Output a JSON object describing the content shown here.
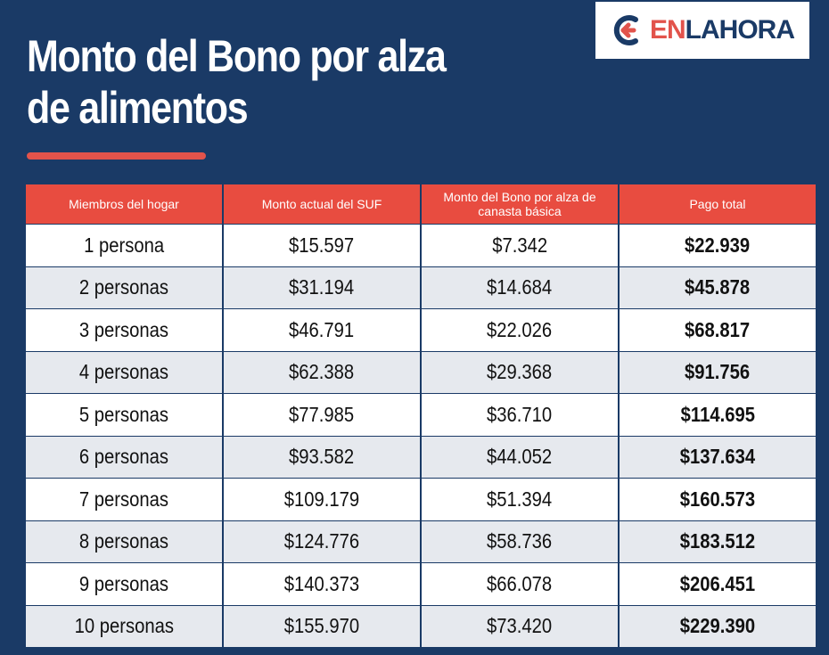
{
  "header": {
    "title_line1": "Monto del Bono por alza",
    "title_line2": "de alimentos"
  },
  "logo": {
    "icon": "enlahora-arrow-logo-icon",
    "part1": "EN",
    "part2": "LAHORA",
    "colors": {
      "accent": "#e2534b",
      "navy": "#1a3a66"
    }
  },
  "table": {
    "headers": [
      "Miembros del hogar",
      "Monto actual del SUF",
      "Monto del Bono por alza de canasta básica",
      "Pago total"
    ],
    "rows": [
      [
        "1 persona",
        "$15.597",
        "$7.342",
        "$22.939"
      ],
      [
        "2 personas",
        "$31.194",
        "$14.684",
        "$45.878"
      ],
      [
        "3 personas",
        "$46.791",
        "$22.026",
        "$68.817"
      ],
      [
        "4 personas",
        "$62.388",
        "$29.368",
        "$91.756"
      ],
      [
        "5 personas",
        "$77.985",
        "$36.710",
        "$114.695"
      ],
      [
        "6 personas",
        "$93.582",
        "$44.052",
        "$137.634"
      ],
      [
        "7 personas",
        "$109.179",
        "$51.394",
        "$160.573"
      ],
      [
        "8 personas",
        "$124.776",
        "$58.736",
        "$183.512"
      ],
      [
        "9 personas",
        "$140.373",
        "$66.078",
        "$206.451"
      ],
      [
        "10 personas",
        "$155.970",
        "$73.420",
        "$229.390"
      ]
    ]
  },
  "colors": {
    "background": "#1a3a66",
    "header_row": "#e84c40",
    "row_odd": "#ffffff",
    "row_even": "#e6e9ee"
  }
}
